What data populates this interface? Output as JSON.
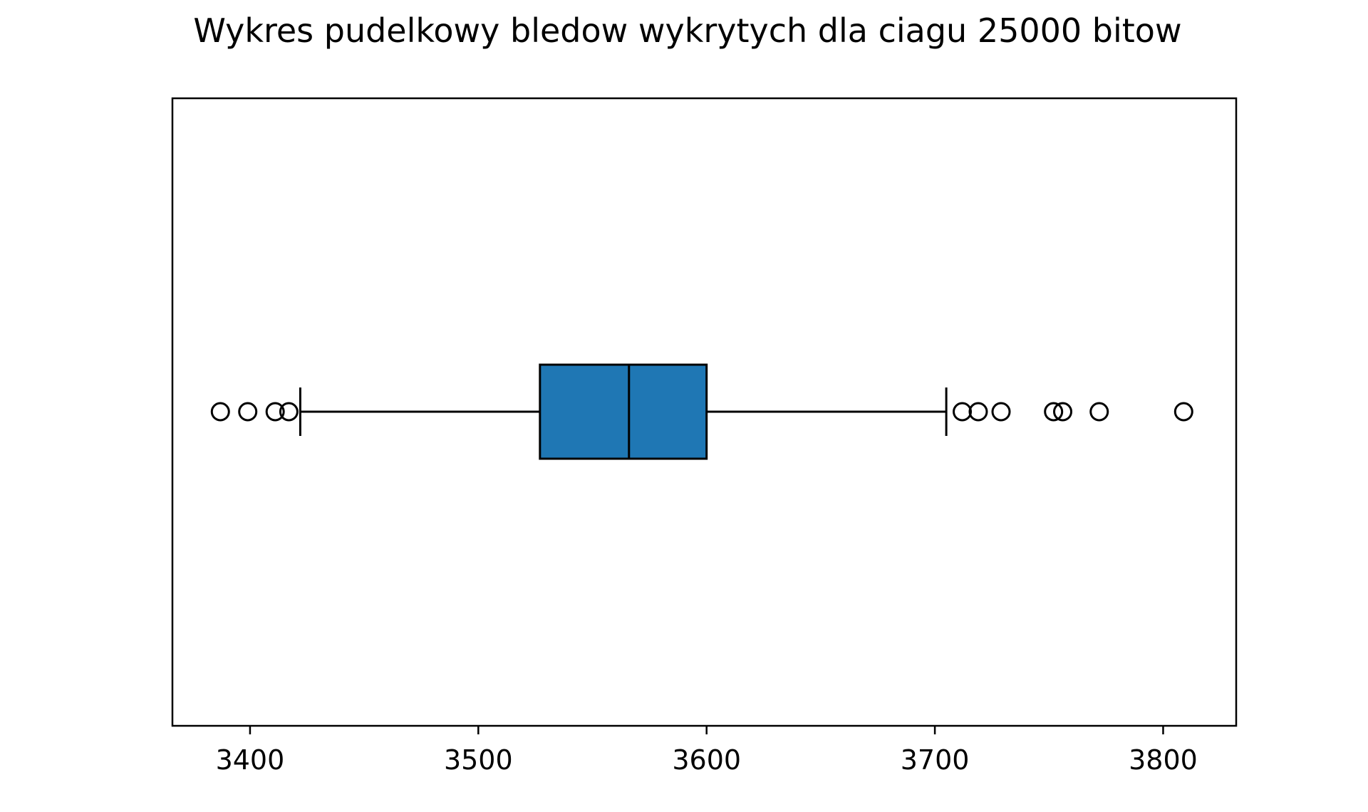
{
  "chart_data": {
    "type": "boxplot",
    "orientation": "horizontal",
    "title": "Wykres pudelkowy bledow wykrytych dla ciagu 25000 bitow",
    "xlabel": "",
    "ylabel": "",
    "xlim": [
      3366,
      3832
    ],
    "xticks": [
      3400,
      3500,
      3600,
      3700,
      3800
    ],
    "xtick_labels": [
      "3400",
      "3500",
      "3600",
      "3700",
      "3800"
    ],
    "grid": false,
    "box": {
      "whisker_low": 3422,
      "q1": 3527,
      "median": 3566,
      "q3": 3600,
      "whisker_high": 3705,
      "outliers": [
        3387,
        3399,
        3411,
        3417,
        3712,
        3719,
        3729,
        3752,
        3756,
        3772,
        3809
      ]
    },
    "colors": {
      "box_fill": "#1f77b4",
      "edge": "#000000"
    }
  }
}
